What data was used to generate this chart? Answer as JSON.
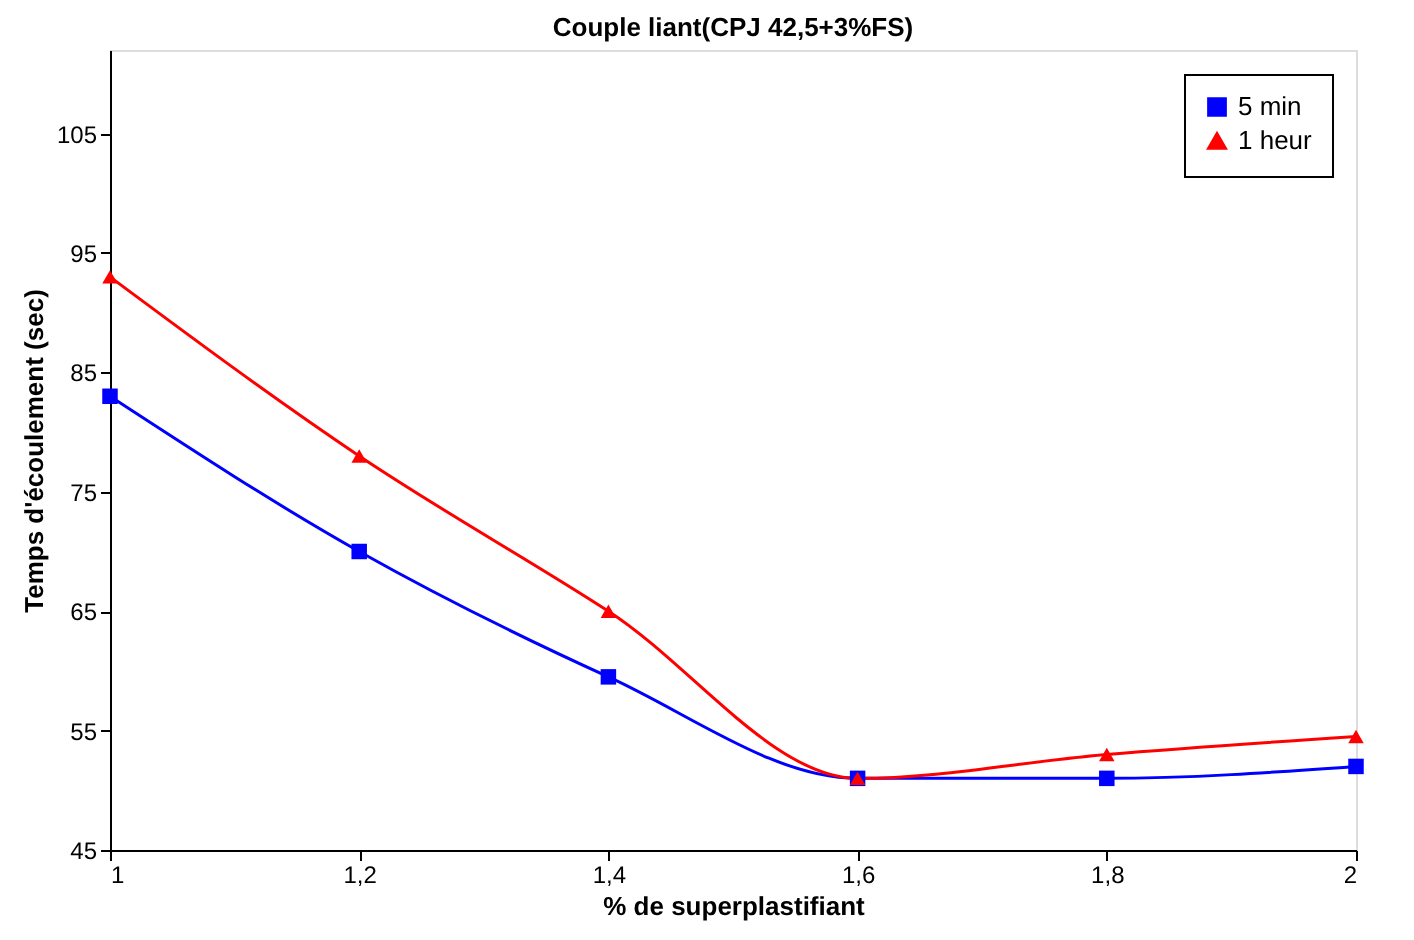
{
  "chart_data": {
    "type": "line",
    "title": "Couple liant(CPJ 42,5+3%FS)",
    "xlabel": "% de superplastifiant",
    "ylabel": "Temps d'écoulement (sec)",
    "x": [
      1,
      1.2,
      1.4,
      1.6,
      1.8,
      2
    ],
    "series": [
      {
        "name": "5 min",
        "color": "#0000ff",
        "marker": "square",
        "values": [
          83,
          70,
          59.5,
          51,
          51,
          52
        ]
      },
      {
        "name": "1 heur",
        "color": "#ff0000",
        "marker": "triangle",
        "values": [
          93,
          78,
          65,
          51,
          53,
          54.5
        ]
      }
    ],
    "xlim": [
      1,
      2
    ],
    "xticks": [
      1,
      {
        "value": 1.2,
        "label": "1,2"
      },
      {
        "value": 1.4,
        "label": "1,4"
      },
      {
        "value": 1.6,
        "label": "1,6"
      },
      {
        "value": 1.8,
        "label": "1,8"
      },
      2
    ],
    "ylim": [
      45,
      112
    ],
    "yticks": [
      45,
      55,
      65,
      75,
      85,
      95,
      105
    ],
    "grid": false,
    "legend": "top right",
    "line_style": "solid"
  }
}
